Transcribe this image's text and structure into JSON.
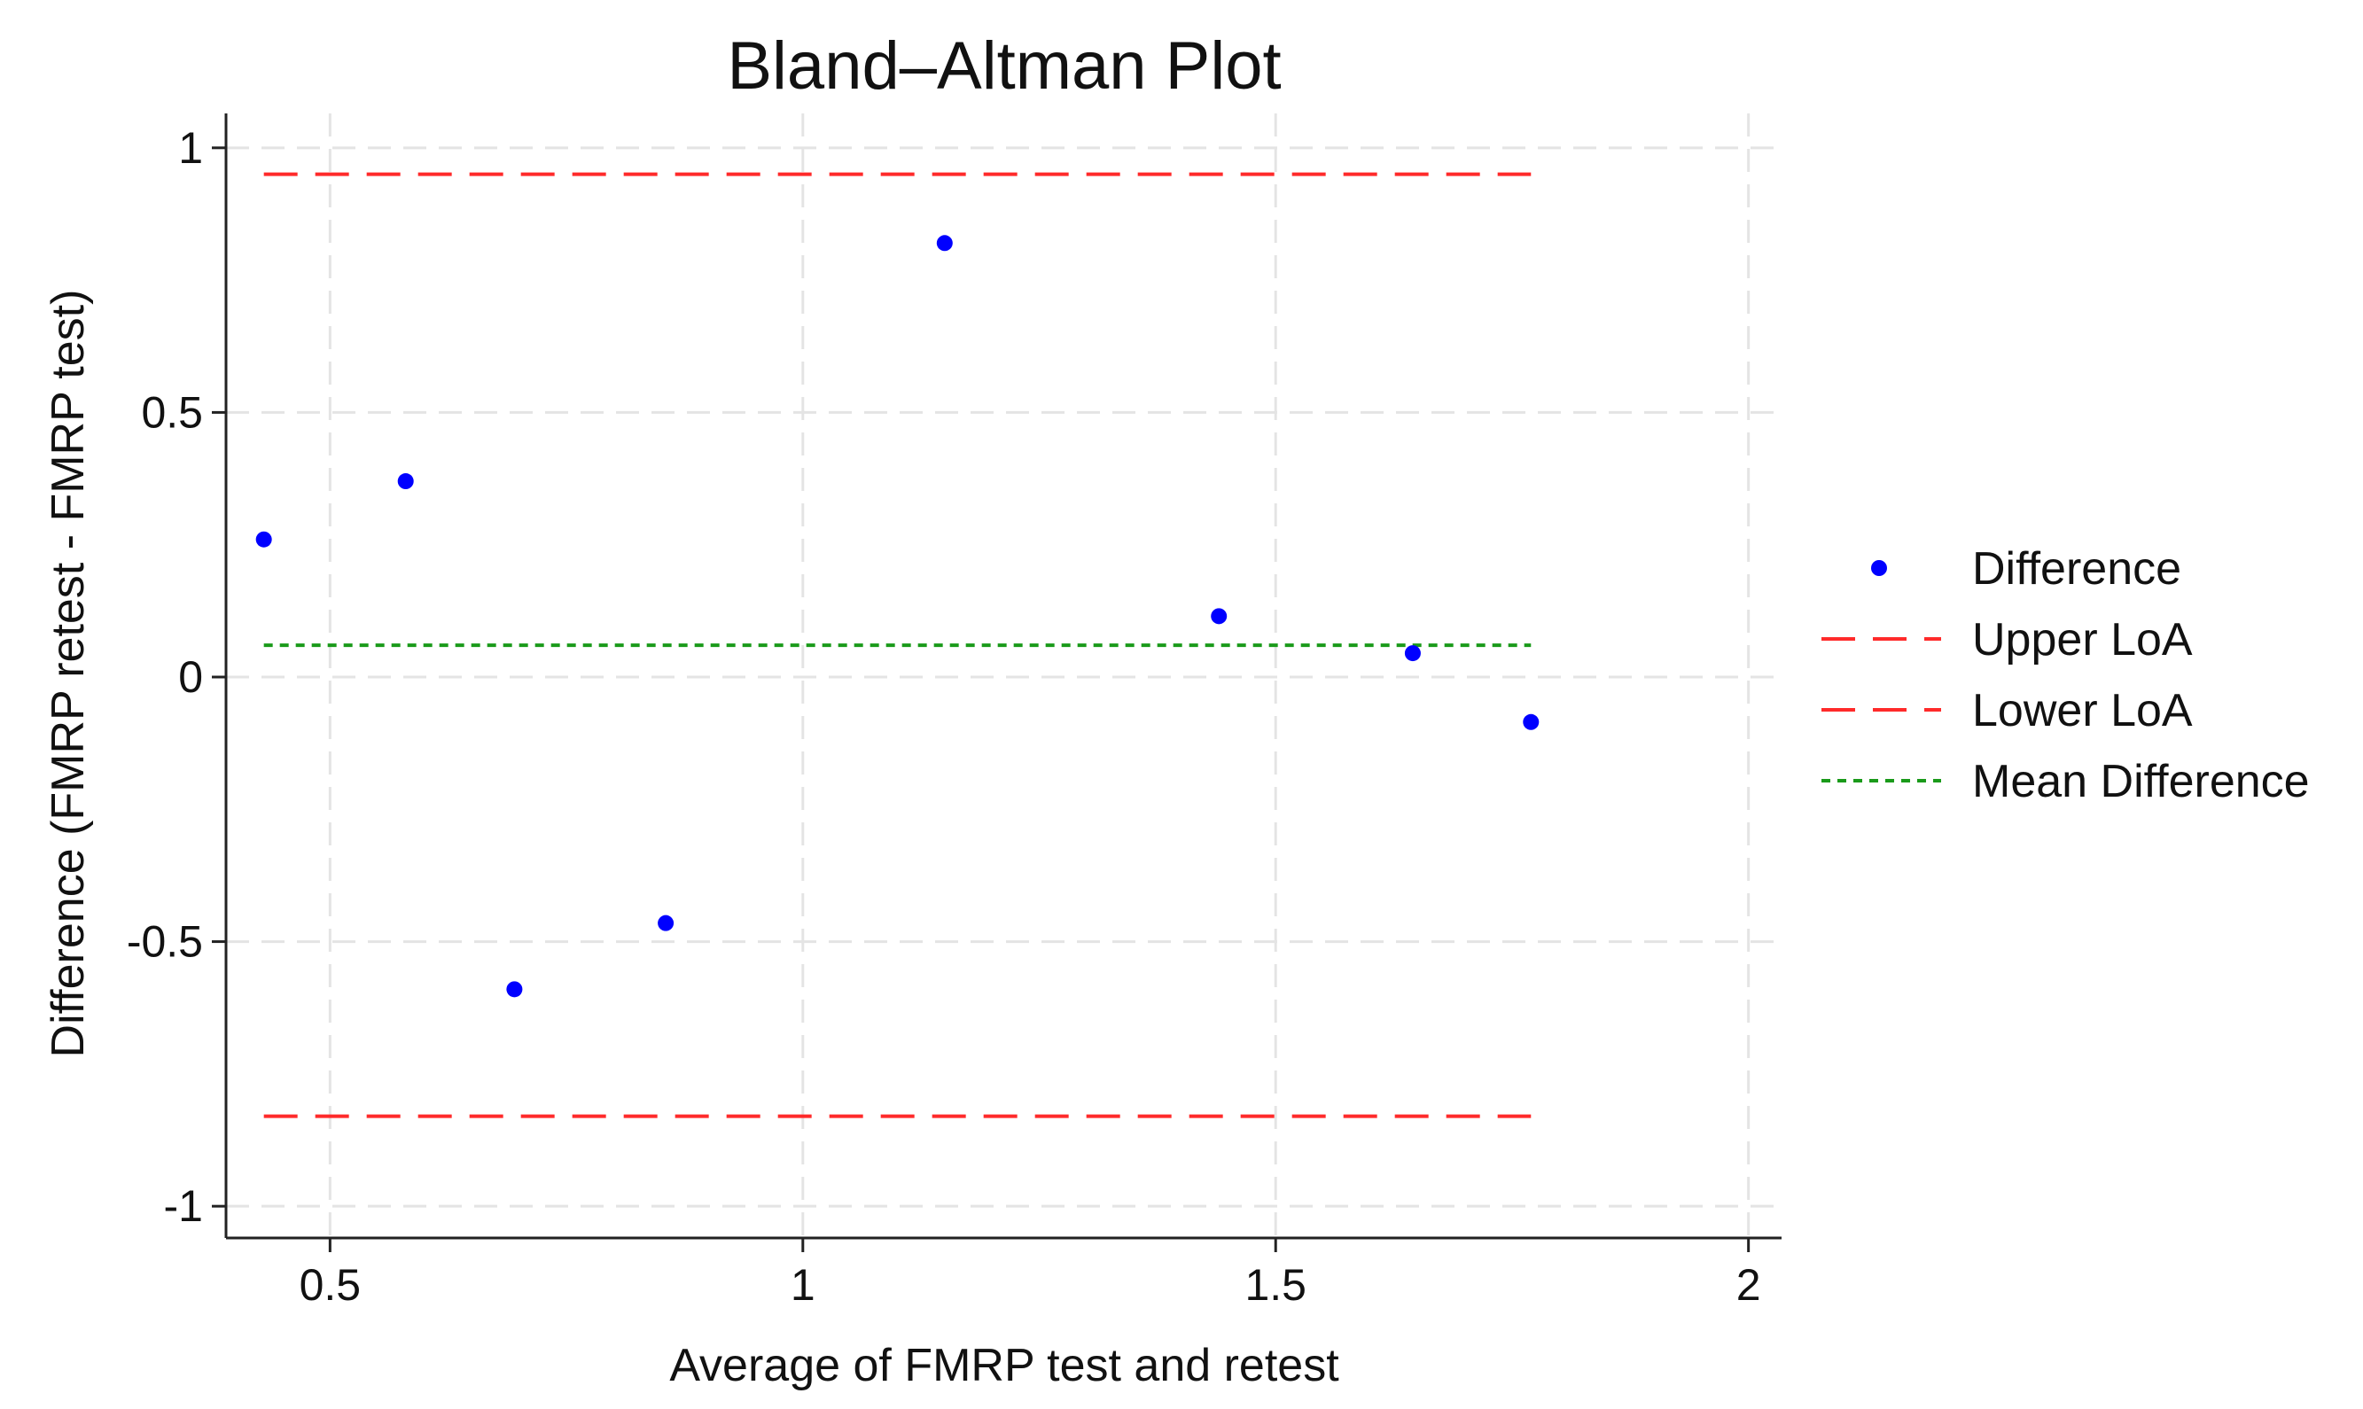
{
  "chart_data": {
    "type": "scatter",
    "title": "Bland–Altman Plot",
    "xlabel": "Average of FMRP test and retest",
    "ylabel": "Difference (FMRP retest - FMRP test)",
    "xlim": [
      0.39,
      2.035
    ],
    "ylim": [
      -1.06,
      1.065
    ],
    "x_ticks": [
      0.5,
      1,
      1.5,
      2
    ],
    "x_tick_labels": [
      "0.5",
      "1",
      "1.5",
      "2"
    ],
    "y_ticks": [
      -1,
      -0.5,
      0,
      0.5,
      1
    ],
    "y_tick_labels": [
      "-1",
      "-0.5",
      "0",
      "0.5",
      "1"
    ],
    "grid": true,
    "legend_position": "right",
    "points": {
      "name": "Difference",
      "color": "#0000ff",
      "x": [
        0.43,
        0.58,
        0.695,
        0.855,
        1.15,
        1.44,
        1.645,
        1.77
      ],
      "y": [
        0.26,
        0.37,
        -0.59,
        -0.465,
        0.82,
        0.115,
        0.045,
        -0.085
      ]
    },
    "lines": [
      {
        "name": "Upper LoA",
        "value": 0.95,
        "x_range": [
          0.43,
          1.77
        ],
        "color": "#ff2a2a",
        "style": "dashed"
      },
      {
        "name": "Lower LoA",
        "value": -0.83,
        "x_range": [
          0.43,
          1.77
        ],
        "color": "#ff2a2a",
        "style": "dashed"
      },
      {
        "name": "Mean Difference",
        "value": 0.06,
        "x_range": [
          0.43,
          1.77
        ],
        "color": "#1a9a1a",
        "style": "dotted"
      }
    ]
  },
  "legend": {
    "items": [
      {
        "label": "Difference",
        "kind": "marker",
        "color": "#0000ff"
      },
      {
        "label": "Upper LoA",
        "kind": "dashed",
        "color": "#ff2a2a"
      },
      {
        "label": "Lower LoA",
        "kind": "dashed",
        "color": "#ff2a2a"
      },
      {
        "label": "Mean Difference",
        "kind": "dotted",
        "color": "#1a9a1a"
      }
    ]
  }
}
